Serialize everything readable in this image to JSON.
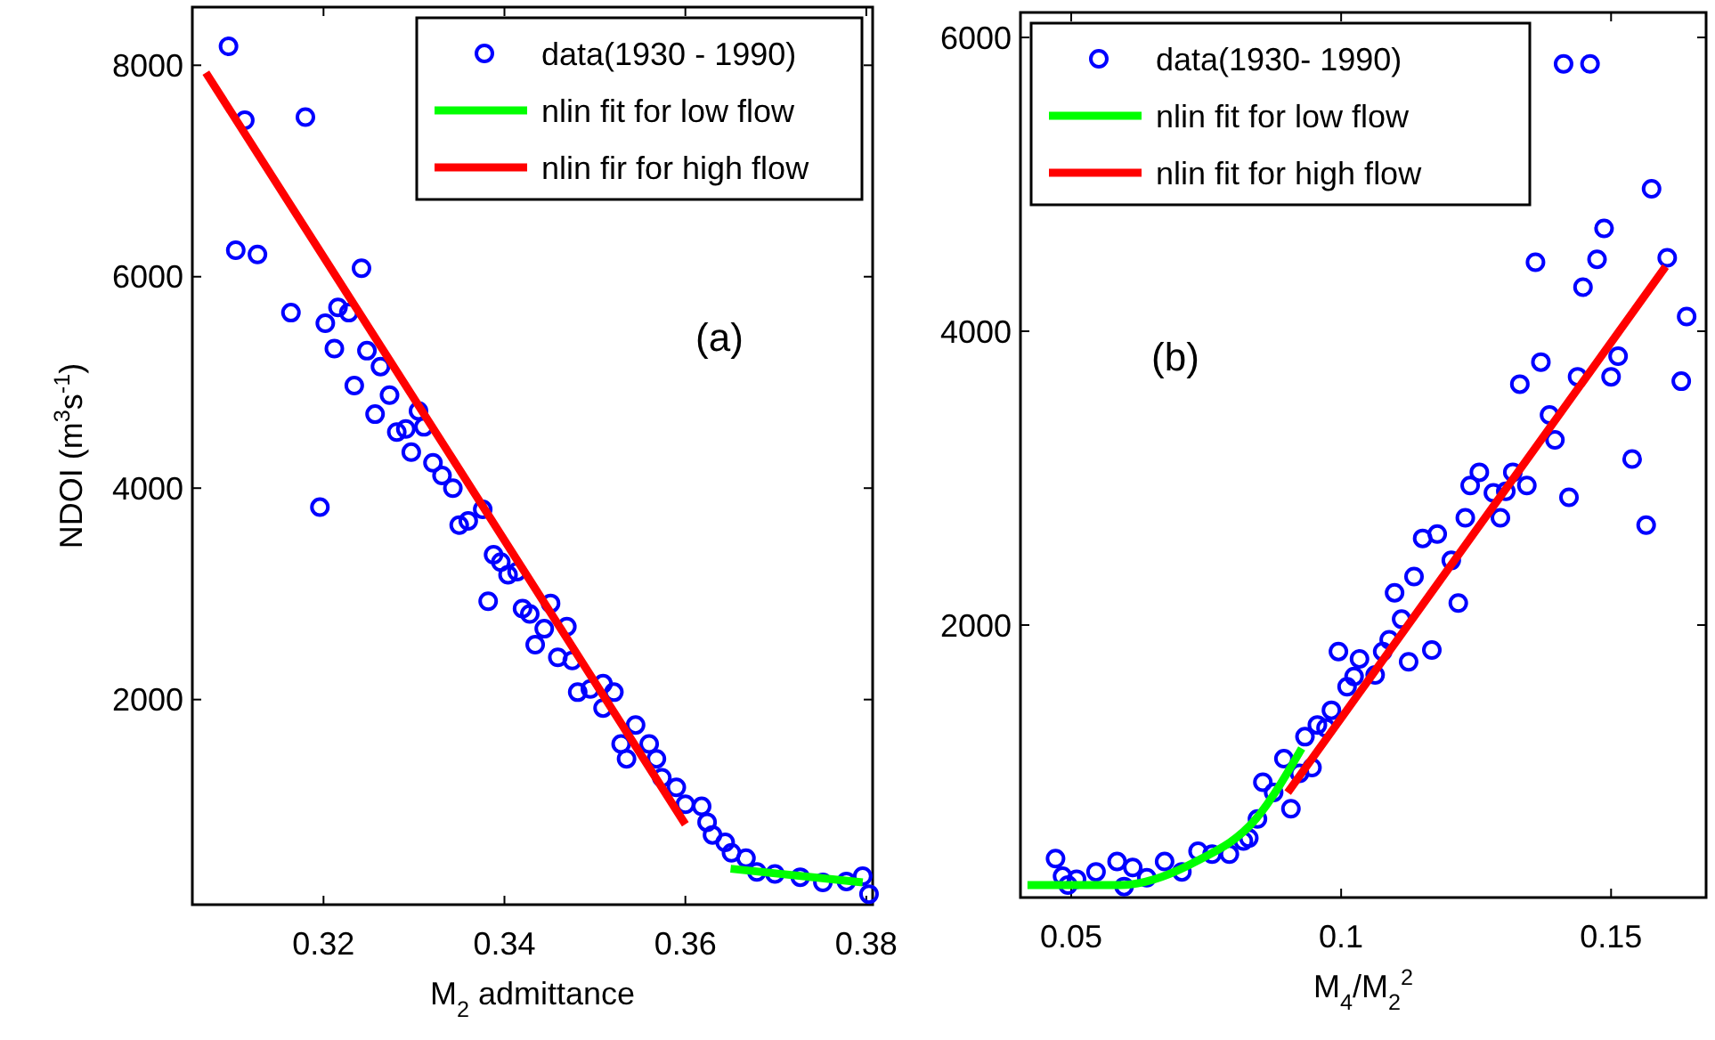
{
  "chart_data": [
    {
      "type": "scatter",
      "xlabel": "M$_{2}$ admittance",
      "ylabel": "NDOI (m$^{3}$s$^{-1}$)",
      "annotations": [
        "(a)"
      ],
      "xlim": [
        0.3055,
        0.3807
      ],
      "ylim": [
        60,
        8550
      ],
      "xticks": [
        0.32,
        0.34,
        0.36,
        0.38
      ],
      "yticks": [
        2000,
        4000,
        6000,
        8000
      ],
      "grid": false,
      "legend": "top right",
      "series": [
        {
          "name": "data(1930 - 1990)",
          "color": "#0000ff",
          "marker": "circle",
          "x": [
            0.3095,
            0.3113,
            0.318,
            0.3103,
            0.3127,
            0.3242,
            0.3164,
            0.3202,
            0.3216,
            0.3228,
            0.3212,
            0.3248,
            0.3263,
            0.3234,
            0.3273,
            0.3257,
            0.3305,
            0.3281,
            0.3291,
            0.3311,
            0.3297,
            0.3321,
            0.3331,
            0.3343,
            0.3196,
            0.3376,
            0.335,
            0.336,
            0.3388,
            0.3396,
            0.3404,
            0.3414,
            0.3382,
            0.342,
            0.3428,
            0.3451,
            0.3444,
            0.3469,
            0.3434,
            0.3459,
            0.3475,
            0.3481,
            0.3495,
            0.3509,
            0.3521,
            0.3509,
            0.3545,
            0.3529,
            0.3535,
            0.356,
            0.3568,
            0.3574,
            0.359,
            0.36,
            0.3618,
            0.3624,
            0.363,
            0.3644,
            0.3651,
            0.3667,
            0.3679,
            0.3699,
            0.3727,
            0.3752,
            0.3778,
            0.3796,
            0.3803
          ],
          "values": [
            8180,
            7480,
            7510,
            6250,
            6210,
            6080,
            5660,
            5560,
            5710,
            5660,
            5320,
            5300,
            5150,
            4970,
            4880,
            4700,
            4730,
            4530,
            4560,
            4580,
            4340,
            4240,
            4120,
            4000,
            3820,
            3800,
            3650,
            3690,
            3370,
            3300,
            3180,
            3210,
            2930,
            2860,
            2810,
            2910,
            2670,
            2690,
            2520,
            2400,
            2370,
            2070,
            2100,
            2150,
            2070,
            1920,
            1760,
            1580,
            1440,
            1580,
            1440,
            1260,
            1170,
            1010,
            990,
            840,
            720,
            650,
            550,
            500,
            370,
            350,
            320,
            270,
            280,
            330,
            160
          ]
        },
        {
          "name": "nlin fit for low flow",
          "type": "line",
          "color": "#00ff00",
          "x": [
            0.365,
            0.3796
          ],
          "values": [
            400,
            270
          ]
        },
        {
          "name": "nlin fir for high flow",
          "type": "line",
          "color": "#ff0000",
          "x": [
            0.307,
            0.3335,
            0.36
          ],
          "values": [
            7930,
            4380,
            820
          ]
        }
      ]
    },
    {
      "type": "scatter",
      "xlabel": "M$_{4}$/M$_{2}$$^{2}$",
      "annotations": [
        "(b)"
      ],
      "xlim": [
        0.0406,
        0.1676
      ],
      "ylim": [
        145,
        6170
      ],
      "xticks": [
        0.05,
        0.1,
        0.15
      ],
      "yticks": [
        2000,
        4000,
        6000
      ],
      "grid": false,
      "legend": "top left",
      "series": [
        {
          "name": "data(1930- 1990)",
          "color": "#0000ff",
          "marker": "circle",
          "x": [
            0.1412,
            0.1461,
            0.1575,
            0.1487,
            0.136,
            0.1474,
            0.1604,
            0.1448,
            0.164,
            0.137,
            0.1513,
            0.1331,
            0.1438,
            0.15,
            0.163,
            0.1386,
            0.1396,
            0.1539,
            0.1256,
            0.1318,
            0.1239,
            0.1282,
            0.1305,
            0.1344,
            0.1422,
            0.123,
            0.1295,
            0.1565,
            0.1151,
            0.1178,
            0.1204,
            0.1217,
            0.1135,
            0.1099,
            0.1112,
            0.1089,
            0.1077,
            0.1168,
            0.1125,
            0.0995,
            0.1034,
            0.1063,
            0.1024,
            0.1011,
            0.0982,
            0.0972,
            0.0956,
            0.0933,
            0.0946,
            0.0923,
            0.0894,
            0.0855,
            0.0907,
            0.0875,
            0.0845,
            0.0829,
            0.0819,
            0.0793,
            0.0761,
            0.0735,
            0.0705,
            0.0673,
            0.064,
            0.0614,
            0.0585,
            0.0598,
            0.0546,
            0.051,
            0.0484,
            0.0471,
            0.0494
          ],
          "values": [
            5820,
            5820,
            4970,
            4700,
            4470,
            4490,
            4500,
            4300,
            4100,
            3790,
            3830,
            3640,
            3690,
            3690,
            3660,
            3430,
            3260,
            3130,
            3040,
            3040,
            2950,
            2900,
            2910,
            2950,
            2870,
            2730,
            2730,
            2680,
            2590,
            2620,
            2440,
            2150,
            2330,
            2220,
            2040,
            1900,
            1820,
            1830,
            1750,
            1820,
            1770,
            1660,
            1650,
            1580,
            1420,
            1300,
            1320,
            1240,
            1030,
            990,
            1090,
            930,
            750,
            860,
            680,
            550,
            530,
            440,
            440,
            460,
            320,
            390,
            280,
            350,
            390,
            220,
            320,
            270,
            290,
            410,
            230
          ]
        },
        {
          "name": "nlin fit for low flow",
          "type": "line",
          "color": "#00ff00",
          "x": [
            0.0419,
            0.0591,
            0.0731,
            0.0842,
            0.0927
          ],
          "values": [
            230,
            230,
            390,
            680,
            1160
          ]
        },
        {
          "name": "nlin fit for high flow",
          "type": "line",
          "color": "#ff0000",
          "x": [
            0.0901,
            0.1251,
            0.1601
          ],
          "values": [
            860,
            2650,
            4440
          ]
        }
      ]
    }
  ]
}
